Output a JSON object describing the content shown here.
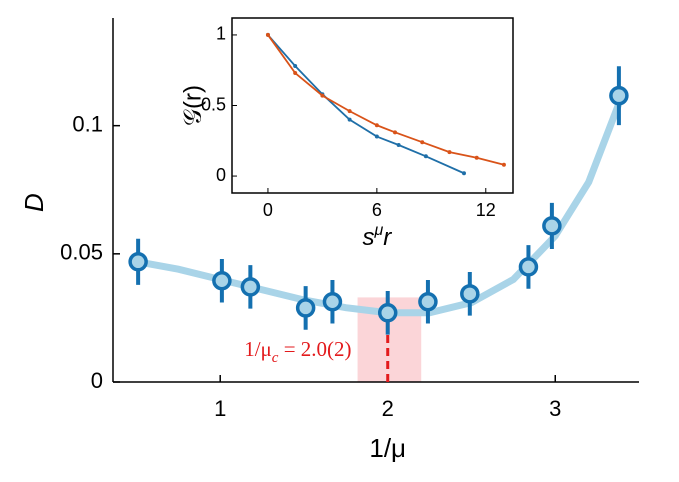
{
  "chart_data": [
    {
      "type": "errorbar",
      "xlabel": "1/μ",
      "ylabel": "D",
      "xlim": [
        0.36,
        3.5
      ],
      "ylim": [
        0,
        0.142
      ],
      "xticks": [
        1,
        2,
        3
      ],
      "yticks": [
        0,
        0.05,
        0.1
      ],
      "x": [
        0.51,
        1.01,
        1.18,
        1.51,
        1.67,
        2.0,
        2.24,
        2.49,
        2.84,
        2.98,
        3.38
      ],
      "values": [
        0.0469,
        0.0395,
        0.0371,
        0.0289,
        0.0313,
        0.027,
        0.0313,
        0.0344,
        0.0449,
        0.0609,
        0.1117
      ],
      "errors": [
        0.009,
        0.0085,
        0.0085,
        0.0085,
        0.0085,
        0.0085,
        0.0085,
        0.0085,
        0.0085,
        0.009,
        0.0115
      ],
      "color": "#1470b0",
      "fit": {
        "color": "#a9d4e8",
        "x": [
          0.5,
          0.75,
          1.0,
          1.25,
          1.5,
          1.75,
          2.0,
          2.25,
          2.5,
          2.75,
          3.0,
          3.2,
          3.4
        ],
        "values": [
          0.047,
          0.044,
          0.04,
          0.036,
          0.032,
          0.029,
          0.027,
          0.027,
          0.031,
          0.04,
          0.057,
          0.078,
          0.112
        ]
      },
      "critical": {
        "value": 2.0,
        "range": [
          1.82,
          2.2
        ],
        "height": 0.033,
        "color": "#e31a1c",
        "label": [
          "1/μ",
          "c",
          " = 2.0(2)"
        ]
      }
    },
    {
      "type": "line",
      "xlabel": [
        "s",
        "μ",
        "r"
      ],
      "ylabel": "𝒢(r)",
      "xlim": [
        -1.98,
        13.5
      ],
      "ylim": [
        -0.12,
        1.12
      ],
      "xticks": [
        0,
        6,
        12
      ],
      "yticks": [
        0,
        0.5,
        1
      ],
      "series": [
        {
          "color": "#1f6fa8",
          "x": [
            0,
            1.5,
            3,
            4.5,
            6,
            7.2,
            8.7,
            10.8
          ],
          "values": [
            1,
            0.78,
            0.58,
            0.4,
            0.28,
            0.22,
            0.14,
            0.02
          ]
        },
        {
          "color": "#d95319",
          "x": [
            0,
            1.5,
            3,
            4.5,
            6,
            7,
            8.5,
            10,
            11.5,
            13
          ],
          "values": [
            1,
            0.73,
            0.57,
            0.46,
            0.36,
            0.31,
            0.24,
            0.17,
            0.13,
            0.08
          ]
        }
      ]
    }
  ]
}
